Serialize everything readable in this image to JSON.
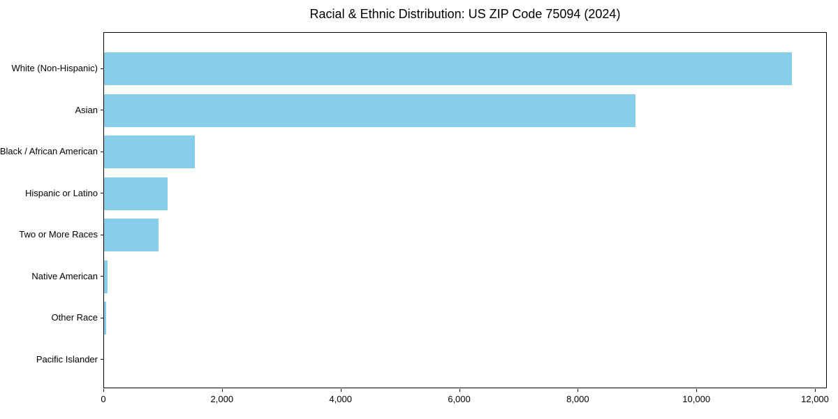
{
  "chart_data": {
    "type": "bar",
    "orientation": "horizontal",
    "title": "Racial & Ethnic Distribution: US ZIP Code 75094 (2024)",
    "categories": [
      "White (Non-Hispanic)",
      "Asian",
      "Black / African American",
      "Hispanic or Latino",
      "Two or More Races",
      "Native American",
      "Other Race",
      "Pacific Islander"
    ],
    "values": [
      11620,
      8980,
      1530,
      1070,
      920,
      60,
      30,
      0
    ],
    "xlabel": "",
    "ylabel": "",
    "xlim": [
      0,
      12200
    ],
    "xticks": [
      0,
      2000,
      4000,
      6000,
      8000,
      10000,
      12000
    ],
    "xtick_labels": [
      "0",
      "2,000",
      "4,000",
      "6,000",
      "8,000",
      "10,000",
      "12,000"
    ],
    "bar_color": "#87CEEB",
    "text_color": "#000000",
    "grid": false,
    "legend": null
  }
}
